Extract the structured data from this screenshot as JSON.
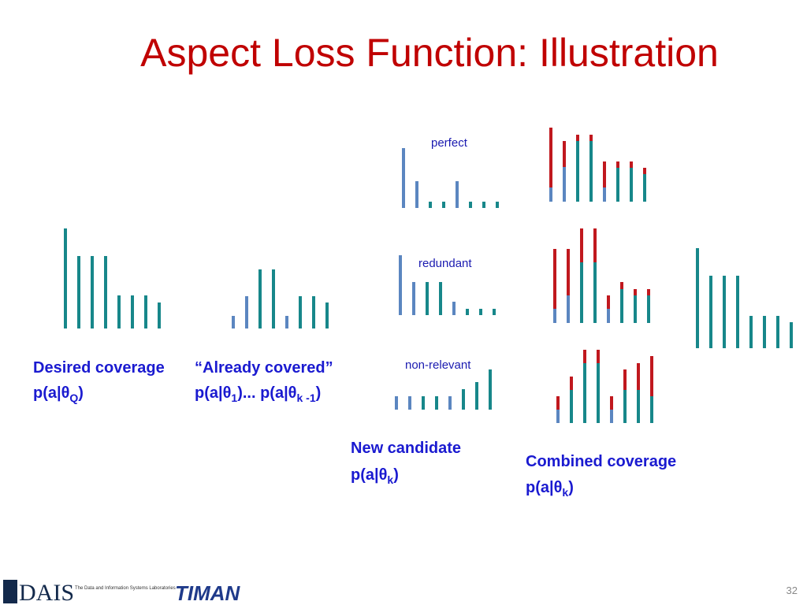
{
  "title": "Aspect Loss Function: Illustration",
  "desired": {
    "label": "Desired coverage",
    "formula": [
      "p(a|θ",
      "Q",
      ")"
    ]
  },
  "covered": {
    "label": "“Already covered”",
    "formula": [
      "p(a|θ",
      "1",
      ")... p(a|θ",
      "k -1",
      ")"
    ]
  },
  "candidates": [
    "perfect",
    "redundant",
    "non-relevant"
  ],
  "candidate": {
    "label": "New candidate",
    "formula": [
      "p(a|θ",
      "k",
      ")"
    ]
  },
  "combined": {
    "label": "Combined coverage",
    "formula": [
      "p(a|θ",
      "k",
      ")"
    ]
  },
  "footer": {
    "logo": "DAIS",
    "lab": "The Data and Information Systems Laboratories",
    "logo2": "TIMAN",
    "page": "32"
  }
}
